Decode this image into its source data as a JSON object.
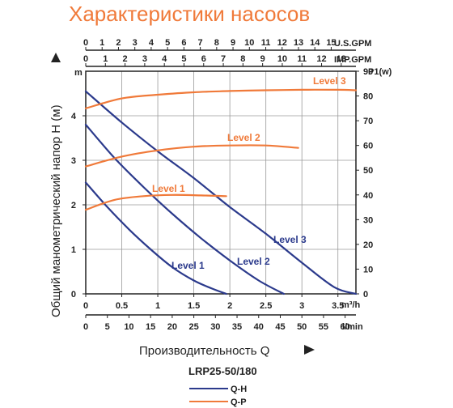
{
  "chart_data": {
    "type": "line",
    "title": "Характеристики насосов",
    "model": "LRP25-50/180",
    "xlabel": "Производительность Q",
    "ylabel": "Общий манометрический напор H (м)",
    "y_unit": "m",
    "y_right_unit": "P1(w)",
    "x_unit": "m³/h",
    "x_bottom_unit": "l/min",
    "x_top_unit": "U.S.GPM",
    "x_top2_unit": "IMP.GPM",
    "xlim": [
      0,
      3.75
    ],
    "ylim": [
      0,
      5
    ],
    "y_right_lim": [
      0,
      90
    ],
    "grid": true,
    "x_ticks": [
      "0",
      "0.5",
      "1",
      "1.5",
      "2",
      "2.5",
      "3",
      "3.5"
    ],
    "x_ticks_values": [
      0,
      0.5,
      1,
      1.5,
      2,
      2.5,
      3,
      3.5
    ],
    "y_ticks": [
      "0",
      "1",
      "2",
      "3",
      "4"
    ],
    "y_ticks_values": [
      0,
      1,
      2,
      3,
      4
    ],
    "y_right_ticks": [
      "0",
      "10",
      "20",
      "30",
      "40",
      "50",
      "60",
      "70",
      "80",
      "90"
    ],
    "y_right_ticks_values": [
      0,
      10,
      20,
      30,
      40,
      50,
      60,
      70,
      80,
      90
    ],
    "lmin_ticks": [
      "0",
      "5",
      "10",
      "15",
      "20",
      "25",
      "30",
      "35",
      "40",
      "45",
      "50",
      "55",
      "60"
    ],
    "lmin_ticks_values": [
      0,
      5,
      10,
      15,
      20,
      25,
      30,
      35,
      40,
      45,
      50,
      55,
      60
    ],
    "usgpm_ticks": [
      "0",
      "1",
      "2",
      "3",
      "4",
      "5",
      "6",
      "7",
      "8",
      "9",
      "10",
      "11",
      "12",
      "13",
      "14",
      "15"
    ],
    "usgpm_ticks_values": [
      0,
      1,
      2,
      3,
      4,
      5,
      6,
      7,
      8,
      9,
      10,
      11,
      12,
      13,
      14,
      15
    ],
    "impgpm_ticks": [
      "0",
      "1",
      "2",
      "3",
      "4",
      "5",
      "6",
      "7",
      "8",
      "9",
      "10",
      "11",
      "12",
      "13"
    ],
    "impgpm_ticks_values": [
      0,
      1,
      2,
      3,
      4,
      5,
      6,
      7,
      8,
      9,
      10,
      11,
      12,
      13
    ],
    "series": [
      {
        "name": "Level 1",
        "kind": "Q-H",
        "x": [
          0,
          0.3,
          0.6,
          0.9,
          1.2,
          1.5,
          1.75,
          1.95
        ],
        "y": [
          2.5,
          1.95,
          1.45,
          1.0,
          0.6,
          0.3,
          0.12,
          0.0
        ]
      },
      {
        "name": "Level 2",
        "kind": "Q-H",
        "x": [
          0,
          0.4,
          0.8,
          1.2,
          1.6,
          2.0,
          2.4,
          2.75
        ],
        "y": [
          3.8,
          3.05,
          2.4,
          1.8,
          1.25,
          0.75,
          0.3,
          0.0
        ]
      },
      {
        "name": "Level 3",
        "kind": "Q-H",
        "x": [
          0,
          0.5,
          1.0,
          1.5,
          2.0,
          2.5,
          3.0,
          3.45,
          3.75
        ],
        "y": [
          4.55,
          3.85,
          3.2,
          2.6,
          1.95,
          1.35,
          0.7,
          0.15,
          0.0
        ]
      },
      {
        "name": "Level 1",
        "kind": "Q-P",
        "x": [
          0,
          0.4,
          0.8,
          1.2,
          1.6,
          1.95
        ],
        "y": [
          34,
          38,
          39.5,
          40,
          39.8,
          39.5
        ]
      },
      {
        "name": "Level 2",
        "kind": "Q-P",
        "x": [
          0,
          0.5,
          1.0,
          1.5,
          2.0,
          2.5,
          2.95
        ],
        "y": [
          51.5,
          55.5,
          58,
          59.5,
          60,
          60,
          59
        ]
      },
      {
        "name": "Level 3",
        "kind": "Q-P",
        "x": [
          0,
          0.5,
          1.0,
          1.5,
          2.0,
          2.5,
          3.0,
          3.5,
          3.75
        ],
        "y": [
          75,
          79,
          80.5,
          81.5,
          82,
          82.3,
          82.5,
          82.5,
          82.3
        ]
      }
    ],
    "legend": {
      "placement": "bottom",
      "entries": [
        "Q-H",
        "Q-P"
      ]
    },
    "colors": {
      "qh": "#2b3a8c",
      "qp": "#f07a3a",
      "grid": "#9a9a9a",
      "axis": "#222222"
    }
  }
}
